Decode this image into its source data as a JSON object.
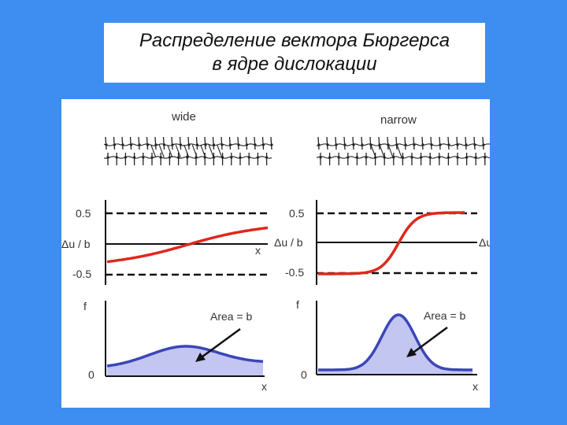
{
  "title": {
    "line1": "Распределение вектора Бюргерса",
    "line2": "в ядре дислокации"
  },
  "panels": [
    {
      "id": "wide",
      "label": "wide",
      "displacement": {
        "y_top": "0.5",
        "y_bottom": "-0.5",
        "y_label": "Δu / b",
        "x_label": "x"
      },
      "distribution": {
        "y_label": "f",
        "zero_label": "0",
        "x_label": "x",
        "area_label": "Area = b"
      }
    },
    {
      "id": "narrow",
      "label": "narrow",
      "displacement": {
        "y_top": "0.5",
        "y_bottom": "-0.5",
        "y_label": "Δu / b",
        "y_label_cut": "Δu"
      },
      "distribution": {
        "y_label": "f",
        "zero_label": "0",
        "x_label": "x",
        "area_label": "Area = b"
      }
    }
  ],
  "colors": {
    "background": "#3d8ef0",
    "displacement_curve": "#e0281c",
    "distribution_curve": "#3b46b8",
    "distribution_fill": "#c4c6f2",
    "lattice": "#222222"
  }
}
